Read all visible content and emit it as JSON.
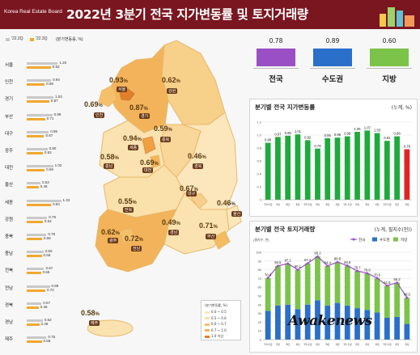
{
  "header": {
    "logo": "Korea Real Estate Board",
    "title": "2022년 3분기 전국 지가변동률 및 토지거래량"
  },
  "legend_top": {
    "prev_label": "'22.2Q",
    "curr_label": "'22.3Q",
    "unit_label": "(분기변동률, %)"
  },
  "colors": {
    "banner": "#7a1620",
    "prev_bar": "#c8c8c8",
    "curr_bar": "#f0a830",
    "national": "#9b4fc4",
    "capital": "#2a6fc9",
    "local": "#7cc34a",
    "green_bar": "#1faa3c",
    "red_bar": "#e02424"
  },
  "provinces": [
    {
      "name": "서울",
      "prev": "1.20",
      "curr": "0.93"
    },
    {
      "name": "인천",
      "prev": "0.94",
      "curr": "0.69"
    },
    {
      "name": "경기",
      "prev": "1.03",
      "curr": "0.87"
    },
    {
      "name": "부산",
      "prev": "0.99",
      "curr": "0.71"
    },
    {
      "name": "대구",
      "prev": "0.85",
      "curr": "0.67"
    },
    {
      "name": "광주",
      "prev": "0.80",
      "curr": "0.62"
    },
    {
      "name": "대전",
      "prev": "1.02",
      "curr": "0.69"
    },
    {
      "name": "울산",
      "prev": "0.53",
      "curr": "0.46"
    },
    {
      "name": "세종",
      "prev": "1.33",
      "curr": "0.94"
    },
    {
      "name": "강원",
      "prev": "0.79",
      "curr": "0.62"
    },
    {
      "name": "충북",
      "prev": "0.76",
      "curr": "0.59"
    },
    {
      "name": "충남",
      "prev": "0.65",
      "curr": "0.58"
    },
    {
      "name": "전북",
      "prev": "0.67",
      "curr": "0.55"
    },
    {
      "name": "전남",
      "prev": "0.89",
      "curr": "0.72"
    },
    {
      "name": "경북",
      "prev": "0.57",
      "curr": "0.46"
    },
    {
      "name": "경남",
      "prev": "0.62",
      "curr": "0.49"
    },
    {
      "name": "제주",
      "prev": "0.76",
      "curr": "0.58"
    }
  ],
  "map": {
    "labels": [
      {
        "name": "서울",
        "value": "0.93"
      },
      {
        "name": "인천",
        "value": "0.69"
      },
      {
        "name": "경기",
        "value": "0.87"
      },
      {
        "name": "강원",
        "value": "0.62"
      },
      {
        "name": "세종",
        "value": "0.94"
      },
      {
        "name": "충북",
        "value": "0.59"
      },
      {
        "name": "충남",
        "value": "0.58"
      },
      {
        "name": "대전",
        "value": "0.69"
      },
      {
        "name": "경북",
        "value": "0.46"
      },
      {
        "name": "대구",
        "value": "0.67"
      },
      {
        "name": "전북",
        "value": "0.55"
      },
      {
        "name": "울산",
        "value": "0.46"
      },
      {
        "name": "경남",
        "value": "0.49"
      },
      {
        "name": "부산",
        "value": "0.71"
      },
      {
        "name": "광주",
        "value": "0.62"
      },
      {
        "name": "전남",
        "value": "0.72"
      },
      {
        "name": "제주",
        "value": "0.58"
      }
    ],
    "pct": "%",
    "legend_title": "(분기변동률, %)",
    "legend": [
      "0.0 ~ 0.5",
      "0.5 ~ 0.6",
      "0.6 ~ 0.7",
      "0.7 ~ 1.0",
      "1.0 이상"
    ]
  },
  "summary": [
    {
      "label": "전국",
      "value": "0.78"
    },
    {
      "label": "수도권",
      "value": "0.89"
    },
    {
      "label": "지방",
      "value": "0.60"
    }
  ],
  "chart_data": [
    {
      "type": "bar",
      "title": "분기별 전국 지가변동률",
      "note": "(누계, %)",
      "categories": [
        "'19.1Q",
        "2Q",
        "3Q",
        "4Q",
        "'20.1Q",
        "2Q",
        "3Q",
        "4Q",
        "'21.1Q",
        "2Q",
        "3Q",
        "4Q",
        "'22.1Q",
        "2Q",
        "3Q"
      ],
      "values": [
        0.88,
        0.97,
        0.99,
        1.01,
        0.92,
        0.79,
        0.95,
        0.96,
        0.98,
        1.05,
        1.07,
        1.03,
        0.91,
        0.98,
        0.78
      ],
      "labels": [
        "0.88",
        "0.97",
        "0.99",
        "1.01",
        "0.92",
        "0.79",
        "0.95",
        "0.96",
        "0.98",
        "1.05",
        "1.07",
        "1.03",
        "0.91",
        "0.98",
        "0.78"
      ],
      "ylim": [
        0,
        1.2
      ],
      "ytick_labels": [
        "0",
        "0.2",
        "0.4",
        "0.6",
        "0.8",
        "1.0",
        "1.2"
      ],
      "grid": true
    },
    {
      "type": "bar",
      "title": "분기별 전국 토지거래량",
      "note": "(누계, 필지수(천))",
      "unit_label": "(필지수, 만)",
      "categories": [
        "'19.1Q",
        "2Q",
        "3Q",
        "4Q",
        "'20.1Q",
        "2Q",
        "3Q",
        "4Q",
        "'21.1Q",
        "2Q",
        "3Q",
        "4Q",
        "'22.1Q",
        "2Q",
        "3Q"
      ],
      "series": [
        {
          "name": "전국",
          "values": [
            70.6,
            84.5,
            87.1,
            80.1,
            87.4,
            95.2,
            84.4,
            88.8,
            84.8,
            78.7,
            76.0,
            70.5,
            61.8,
            65.2,
            48.0
          ]
        },
        {
          "name": "수도권",
          "values": [
            33.0,
            39.0,
            40.0,
            35.0,
            40.0,
            45.0,
            39.0,
            42.0,
            39.0,
            36.0,
            34.0,
            31.0,
            25.0,
            26.0,
            18.0
          ]
        },
        {
          "name": "지방",
          "values": [
            37.6,
            45.5,
            47.1,
            45.1,
            47.4,
            50.2,
            45.4,
            46.8,
            45.8,
            42.7,
            42.0,
            39.5,
            36.8,
            39.2,
            30.0
          ]
        }
      ],
      "total_labels": [
        "70.6",
        "84.5",
        "87.1",
        "80.1",
        "87.4",
        "95.2",
        "84.4",
        "88.8",
        "84.8",
        "78.7",
        "76.0",
        "70.5",
        "61.8",
        "65.2",
        "48.0"
      ],
      "ylim": [
        0,
        100
      ],
      "ytick_labels": [
        "0",
        "10",
        "20",
        "30",
        "40",
        "50",
        "60",
        "70",
        "80",
        "90",
        "100"
      ],
      "grid": true,
      "legend_position": "top-right"
    }
  ],
  "watermark": "Awakenews"
}
